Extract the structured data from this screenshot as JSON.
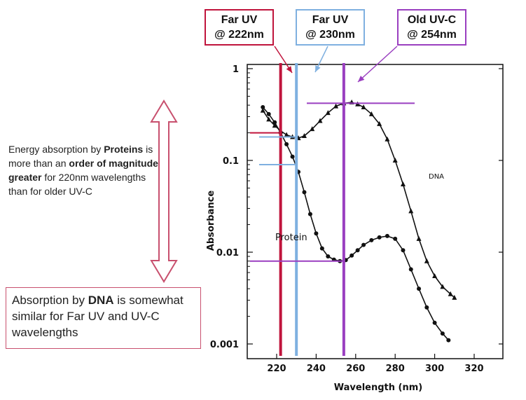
{
  "callouts": [
    {
      "line1": "Far UV",
      "line2": "@ 222nm",
      "color": "#c0143c"
    },
    {
      "line1": "Far UV",
      "line2": "@ 230nm",
      "color": "#7fb0e0"
    },
    {
      "line1": "Old UV-C",
      "line2": "@ 254nm",
      "color": "#9a3fc0"
    }
  ],
  "note_proteins": {
    "part1": "Energy absorption by ",
    "bold1": "Proteins",
    "part2": " is more than an ",
    "bold2": "order of magnitude greater",
    "part3": " for 220nm wavelengths than for older UV-C"
  },
  "note_dna": {
    "part1": "Absorption by ",
    "bold1": "DNA",
    "part2": " is somewhat similar for Far UV and UV-C wavelengths"
  },
  "colors": {
    "red": "#c0143c",
    "blue": "#7fb0e0",
    "purple": "#9a3fc0",
    "pink_frame": "#c8506e"
  },
  "chart_data": {
    "type": "line",
    "xlabel": "Wavelength (nm)",
    "ylabel": "Absorbance",
    "y_scale": "log",
    "xlim": [
      200,
      330
    ],
    "ylim": [
      0.0007,
      1.2
    ],
    "x_ticks": [
      220,
      240,
      260,
      280,
      300,
      320
    ],
    "x_tick_labels": [
      "220",
      "240",
      "260",
      "280",
      "300",
      "320"
    ],
    "y_ticks": [
      1,
      0.1,
      0.01,
      0.001
    ],
    "y_tick_labels": [
      "1",
      "0.1",
      "0.01",
      "0.001"
    ],
    "series": [
      {
        "name": "DNA",
        "marker": "triangle",
        "x": [
          213,
          216,
          219,
          222,
          225,
          228,
          231,
          234,
          238,
          242,
          246,
          250,
          254,
          258,
          261,
          264,
          268,
          272,
          276,
          280,
          284,
          288,
          292,
          296,
          300,
          304,
          308,
          310
        ],
        "y": [
          0.35,
          0.28,
          0.24,
          0.21,
          0.19,
          0.18,
          0.175,
          0.185,
          0.22,
          0.27,
          0.33,
          0.39,
          0.42,
          0.43,
          0.41,
          0.38,
          0.32,
          0.25,
          0.17,
          0.1,
          0.055,
          0.028,
          0.014,
          0.008,
          0.0055,
          0.0042,
          0.0035,
          0.0032
        ]
      },
      {
        "name": "Protein",
        "marker": "circle",
        "x": [
          213,
          216,
          219,
          222,
          225,
          228,
          231,
          234,
          237,
          240,
          243,
          246,
          249,
          252,
          255,
          258,
          261,
          264,
          268,
          272,
          276,
          280,
          284,
          288,
          292,
          296,
          300,
          304,
          307
        ],
        "y": [
          0.38,
          0.32,
          0.26,
          0.2,
          0.15,
          0.11,
          0.075,
          0.045,
          0.026,
          0.016,
          0.011,
          0.009,
          0.0083,
          0.008,
          0.0082,
          0.0092,
          0.0105,
          0.012,
          0.0135,
          0.0145,
          0.015,
          0.014,
          0.0105,
          0.0065,
          0.004,
          0.0025,
          0.0017,
          0.0013,
          0.0011
        ]
      }
    ],
    "vertical_lines": [
      {
        "x": 222,
        "color": "#c0143c"
      },
      {
        "x": 230,
        "color": "#7fb0e0"
      },
      {
        "x": 254,
        "color": "#9a3fc0"
      }
    ],
    "annotations": [
      "DNA",
      "Protein"
    ]
  }
}
